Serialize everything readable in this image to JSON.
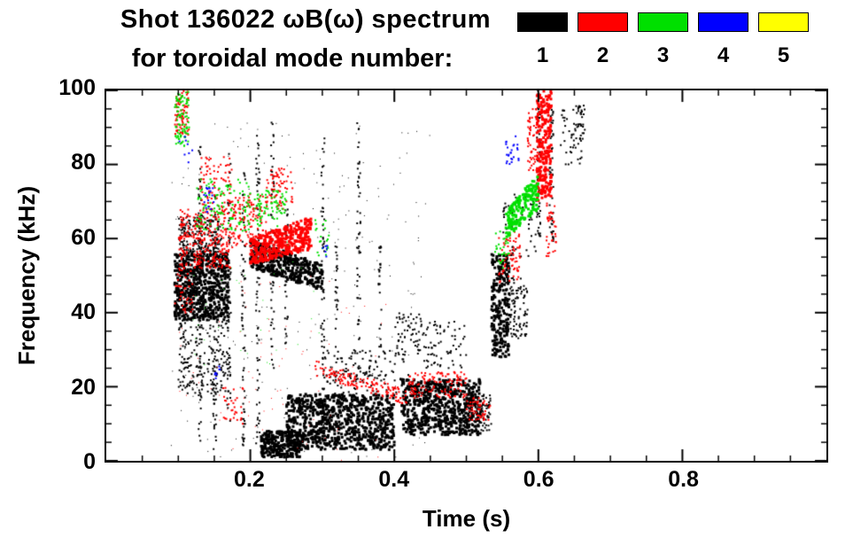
{
  "title": {
    "line1": "Shot 136022 ωB(ω) spectrum",
    "line2": "for toroidal mode number:"
  },
  "legend": {
    "entries": [
      {
        "label": "1",
        "color": "#000000"
      },
      {
        "label": "2",
        "color": "#ff0000"
      },
      {
        "label": "3",
        "color": "#00e000"
      },
      {
        "label": "4",
        "color": "#0000ff"
      },
      {
        "label": "5",
        "color": "#ffff00"
      }
    ]
  },
  "chart_data": {
    "type": "scatter",
    "title": "Shot 136022 ωB(ω) spectrum for toroidal mode number: 1 2 3 4 5",
    "xlabel": "Time (s)",
    "ylabel": "Frequency (kHz)",
    "xlim": [
      0,
      1.0
    ],
    "ylim": [
      0,
      100
    ],
    "grid": false,
    "legend_position": "top-right",
    "x_ticks": [
      {
        "value": 0.2,
        "label": "0.2"
      },
      {
        "value": 0.4,
        "label": "0.4"
      },
      {
        "value": 0.6,
        "label": "0.6"
      },
      {
        "value": 0.8,
        "label": "0.8"
      }
    ],
    "y_ticks": [
      {
        "value": 0,
        "label": "0"
      },
      {
        "value": 20,
        "label": "20"
      },
      {
        "value": 40,
        "label": "40"
      },
      {
        "value": 60,
        "label": "60"
      },
      {
        "value": 80,
        "label": "80"
      },
      {
        "value": 100,
        "label": "100"
      }
    ],
    "x_minor_step": 0.05,
    "y_minor_step": 5,
    "series": [
      {
        "name": "n=1",
        "color": "#000000",
        "clusters": [
          {
            "t": [
              0.095,
              0.17
            ],
            "f": [
              38,
              56
            ],
            "n": 650,
            "s": 3
          },
          {
            "t": [
              0.1,
              0.16
            ],
            "f": [
              55,
              66
            ],
            "n": 220,
            "s": 2
          },
          {
            "t": [
              0.1,
              0.17
            ],
            "f": [
              18,
              38
            ],
            "n": 200,
            "s": 2
          },
          {
            "t": [
              0.128,
              0.133
            ],
            "f": [
              5,
              90
            ],
            "n": 70,
            "s": 2
          },
          {
            "t": [
              0.148,
              0.153
            ],
            "f": [
              3,
              72
            ],
            "n": 60,
            "s": 2
          },
          {
            "t": [
              0.168,
              0.173
            ],
            "f": [
              10,
              84
            ],
            "n": 60,
            "s": 2
          },
          {
            "t": [
              0.188,
              0.193
            ],
            "f": [
              3,
              78
            ],
            "n": 70,
            "s": 2
          },
          {
            "t": [
              0.208,
              0.213
            ],
            "f": [
              2,
              88
            ],
            "n": 70,
            "s": 2
          },
          {
            "t": [
              0.228,
              0.233
            ],
            "f": [
              25,
              92
            ],
            "n": 50,
            "s": 2
          },
          {
            "t": [
              0.248,
              0.252
            ],
            "f": [
              30,
              70
            ],
            "n": 40,
            "s": 2
          },
          {
            "t": [
              0.298,
              0.303
            ],
            "f": [
              8,
              88
            ],
            "n": 60,
            "s": 2
          },
          {
            "t": [
              0.318,
              0.322
            ],
            "f": [
              20,
              60
            ],
            "n": 30,
            "s": 2
          },
          {
            "t": [
              0.348,
              0.353
            ],
            "f": [
              25,
              93
            ],
            "n": 50,
            "s": 2
          },
          {
            "t": [
              0.378,
              0.382
            ],
            "f": [
              28,
              58
            ],
            "n": 25,
            "s": 2
          },
          {
            "t": [
              0.2,
              0.3
            ],
            "f": [
              52,
              60
            ],
            "f2": [
              46,
              53
            ],
            "n": 420,
            "s": 3
          },
          {
            "t": [
              0.215,
              0.27
            ],
            "f": [
              1,
              8
            ],
            "n": 260,
            "s": 3
          },
          {
            "t": [
              0.25,
              0.4
            ],
            "f": [
              3,
              18
            ],
            "n": 850,
            "s": 3
          },
          {
            "t": [
              0.3,
              0.42
            ],
            "f": [
              18,
              30
            ],
            "n": 140,
            "s": 2
          },
          {
            "t": [
              0.4,
              0.44
            ],
            "f": [
              28,
              40
            ],
            "n": 60,
            "s": 2
          },
          {
            "t": [
              0.44,
              0.5
            ],
            "f": [
              25,
              38
            ],
            "n": 70,
            "s": 2
          },
          {
            "t": [
              0.41,
              0.52
            ],
            "f": [
              7,
              22
            ],
            "n": 650,
            "s": 3
          },
          {
            "t": [
              0.5,
              0.535
            ],
            "f": [
              8,
              18
            ],
            "n": 90,
            "s": 2
          },
          {
            "t": [
              0.535,
              0.56
            ],
            "f": [
              28,
              56
            ],
            "n": 240,
            "s": 3
          },
          {
            "t": [
              0.555,
              0.585
            ],
            "f": [
              33,
              50
            ],
            "n": 110,
            "s": 2
          },
          {
            "t": [
              0.55,
              0.6
            ],
            "f": [
              55,
              72
            ],
            "n": 60,
            "s": 2
          },
          {
            "t": [
              0.598,
              0.603
            ],
            "f": [
              60,
              100
            ],
            "n": 60,
            "s": 2
          },
          {
            "t": [
              0.615,
              0.621
            ],
            "f": [
              55,
              95
            ],
            "n": 50,
            "s": 2
          },
          {
            "t": [
              0.63,
              0.66
            ],
            "f": [
              80,
              96
            ],
            "n": 50,
            "s": 2
          },
          {
            "t": [
              0.655,
              0.665
            ],
            "f": [
              86,
              96
            ],
            "n": 25,
            "s": 2
          },
          {
            "t": [
              0.09,
              0.45
            ],
            "f": [
              0,
              92
            ],
            "n": 260,
            "s": 1
          }
        ]
      },
      {
        "name": "n=2",
        "color": "#ff0000",
        "clusters": [
          {
            "t": [
              0.095,
              0.115
            ],
            "f": [
              88,
              100
            ],
            "n": 80,
            "s": 2
          },
          {
            "t": [
              0.1,
              0.175
            ],
            "f": [
              52,
              68
            ],
            "n": 300,
            "s": 2
          },
          {
            "t": [
              0.13,
              0.175
            ],
            "f": [
              68,
              82
            ],
            "n": 80,
            "s": 2
          },
          {
            "t": [
              0.175,
              0.225
            ],
            "f": [
              58,
              72
            ],
            "n": 120,
            "s": 2
          },
          {
            "t": [
              0.2,
              0.285
            ],
            "f": [
              53,
              60
            ],
            "f2": [
              57,
              66
            ],
            "n": 380,
            "s": 3
          },
          {
            "t": [
              0.22,
              0.26
            ],
            "f": [
              68,
              79
            ],
            "n": 70,
            "s": 2
          },
          {
            "t": [
              0.095,
              0.12
            ],
            "f": [
              40,
              52
            ],
            "n": 40,
            "s": 2
          },
          {
            "t": [
              0.29,
              0.42
            ],
            "f": [
              23,
              27
            ],
            "f2": [
              15,
              19
            ],
            "n": 140,
            "s": 2
          },
          {
            "t": [
              0.42,
              0.5
            ],
            "f": [
              17,
              24
            ],
            "n": 120,
            "s": 2
          },
          {
            "t": [
              0.5,
              0.535
            ],
            "f": [
              11,
              17
            ],
            "n": 50,
            "s": 2
          },
          {
            "t": [
              0.545,
              0.575
            ],
            "f": [
              48,
              62
            ],
            "n": 70,
            "s": 2
          },
          {
            "t": [
              0.598,
              0.618
            ],
            "f": [
              70,
              100
            ],
            "n": 220,
            "s": 3
          },
          {
            "t": [
              0.585,
              0.6
            ],
            "f": [
              78,
              95
            ],
            "n": 60,
            "s": 2
          },
          {
            "t": [
              0.61,
              0.625
            ],
            "f": [
              55,
              72
            ],
            "n": 40,
            "s": 2
          },
          {
            "t": [
              0.16,
              0.19
            ],
            "f": [
              10,
              20
            ],
            "n": 30,
            "s": 2
          },
          {
            "t": [
              0.1,
              0.4
            ],
            "f": [
              0,
              50
            ],
            "n": 80,
            "s": 1
          }
        ]
      },
      {
        "name": "n=3",
        "color": "#00e000",
        "clusters": [
          {
            "t": [
              0.095,
              0.115
            ],
            "f": [
              85,
              100
            ],
            "n": 90,
            "s": 2
          },
          {
            "t": [
              0.125,
              0.2
            ],
            "f": [
              62,
              76
            ],
            "n": 120,
            "s": 2
          },
          {
            "t": [
              0.205,
              0.25
            ],
            "f": [
              63,
              73
            ],
            "n": 80,
            "s": 2
          },
          {
            "t": [
              0.29,
              0.31
            ],
            "f": [
              55,
              65
            ],
            "n": 20,
            "s": 2
          },
          {
            "t": [
              0.555,
              0.6
            ],
            "f": [
              60,
              67
            ],
            "f2": [
              68,
              78
            ],
            "n": 180,
            "s": 3
          },
          {
            "t": [
              0.54,
              0.56
            ],
            "f": [
              52,
              62
            ],
            "n": 30,
            "s": 2
          },
          {
            "t": [
              0.12,
              0.3
            ],
            "f": [
              25,
              60
            ],
            "n": 40,
            "s": 1
          }
        ]
      },
      {
        "name": "n=4",
        "color": "#0000ff",
        "clusters": [
          {
            "t": [
              0.135,
              0.15
            ],
            "f": [
              67,
              74
            ],
            "n": 18,
            "s": 2
          },
          {
            "t": [
              0.555,
              0.575
            ],
            "f": [
              80,
              88
            ],
            "n": 25,
            "s": 2
          },
          {
            "t": [
              0.15,
              0.158
            ],
            "f": [
              22,
              27
            ],
            "n": 8,
            "s": 2
          },
          {
            "t": [
              0.3,
              0.31
            ],
            "f": [
              55,
              60
            ],
            "n": 6,
            "s": 2
          },
          {
            "t": [
              0.1,
              0.12
            ],
            "f": [
              80,
              88
            ],
            "n": 8,
            "s": 2
          }
        ]
      },
      {
        "name": "n=5",
        "color": "#ffff00",
        "clusters": []
      }
    ]
  }
}
